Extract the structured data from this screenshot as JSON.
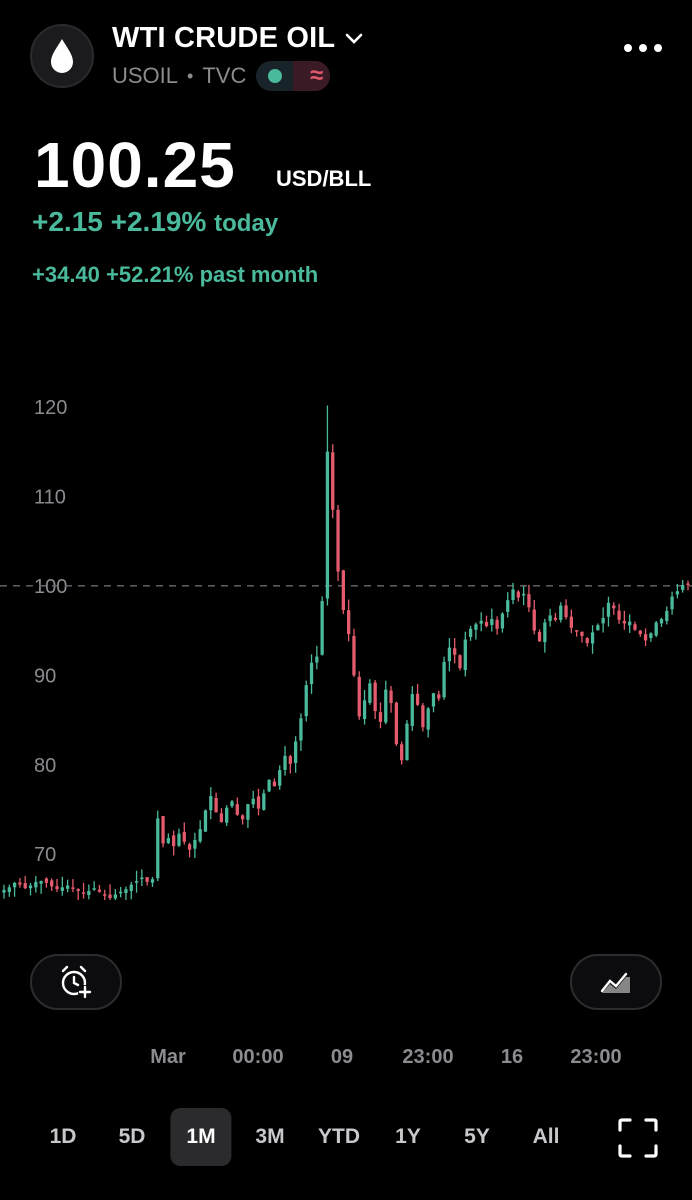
{
  "header": {
    "title": "WTI CRUDE OIL",
    "symbol": "USOIL",
    "separator": "•",
    "exchange": "TVC",
    "live_indicator_icon": "green-dot-icon",
    "extended_hours_icon": "wave-icon"
  },
  "quote": {
    "price": "100.25",
    "unit": "USD/BLL",
    "change_today": "+2.15 +2.19%",
    "today_label": "today",
    "change_month": "+34.40 +52.21% past month"
  },
  "colors": {
    "up": "#4ab99c",
    "down": "#e35b6d",
    "grid_text": "#8b8b90",
    "background": "#000000"
  },
  "chart_data": {
    "type": "candlestick",
    "y_ticks": [
      "120",
      "110",
      "100",
      "90",
      "80",
      "70"
    ],
    "y_tick_values": [
      120,
      110,
      100,
      90,
      80,
      70
    ],
    "ylim": [
      66,
      121
    ],
    "reference_line": 100,
    "x_labels": [
      "Mar",
      "00:00",
      "09",
      "23:00",
      "16",
      "23:00"
    ],
    "closes": [
      66.0,
      66.3,
      66.8,
      66.6,
      66.2,
      66.5,
      66.9,
      67.0,
      66.8,
      66.4,
      66.1,
      66.3,
      66.5,
      66.2,
      65.9,
      65.6,
      65.9,
      66.2,
      65.8,
      65.4,
      65.1,
      65.5,
      65.8,
      66.1,
      66.6,
      67.0,
      67.4,
      66.9,
      67.2,
      74.0,
      71.2,
      71.8,
      70.9,
      72.3,
      71.4,
      70.5,
      71.6,
      72.8,
      74.9,
      76.5,
      74.7,
      73.6,
      75.2,
      75.9,
      74.4,
      73.9,
      75.6,
      76.2,
      75.1,
      76.8,
      78.3,
      77.6,
      79.4,
      81.0,
      80.1,
      82.6,
      85.2,
      88.9,
      91.4,
      92.1,
      98.3,
      115.0,
      108.5,
      101.6,
      97.3,
      94.6,
      90.0,
      85.4,
      87.2,
      89.1,
      86.0,
      84.8,
      88.4,
      86.9,
      82.3,
      80.5,
      84.6,
      87.9,
      86.7,
      84.2,
      86.3,
      88.0,
      87.4,
      91.5,
      93.1,
      92.3,
      90.8,
      94.0,
      95.2,
      95.7,
      96.1,
      95.5,
      96.3,
      95.2,
      96.9,
      98.4,
      99.6,
      98.7,
      99.1,
      97.6,
      95.0,
      93.8,
      95.9,
      96.7,
      96.2,
      97.8,
      96.5,
      95.3,
      94.9,
      94.4,
      93.6,
      94.8,
      95.6,
      96.4,
      98.1,
      97.5,
      96.2,
      95.8,
      96.0,
      95.1,
      94.6,
      93.9,
      94.7,
      95.9,
      96.3,
      97.2,
      98.8,
      99.4,
      100.1,
      100.25
    ],
    "ohlc_note": ""
  },
  "controls": {
    "alert_icon": "alarm-plus-icon",
    "indicator_icon": "chart-type-icon",
    "fullscreen_icon": "fullscreen-icon"
  },
  "ranges": {
    "items": [
      "1D",
      "5D",
      "1M",
      "3M",
      "YTD",
      "1Y",
      "5Y",
      "All"
    ],
    "selected": "1M"
  }
}
